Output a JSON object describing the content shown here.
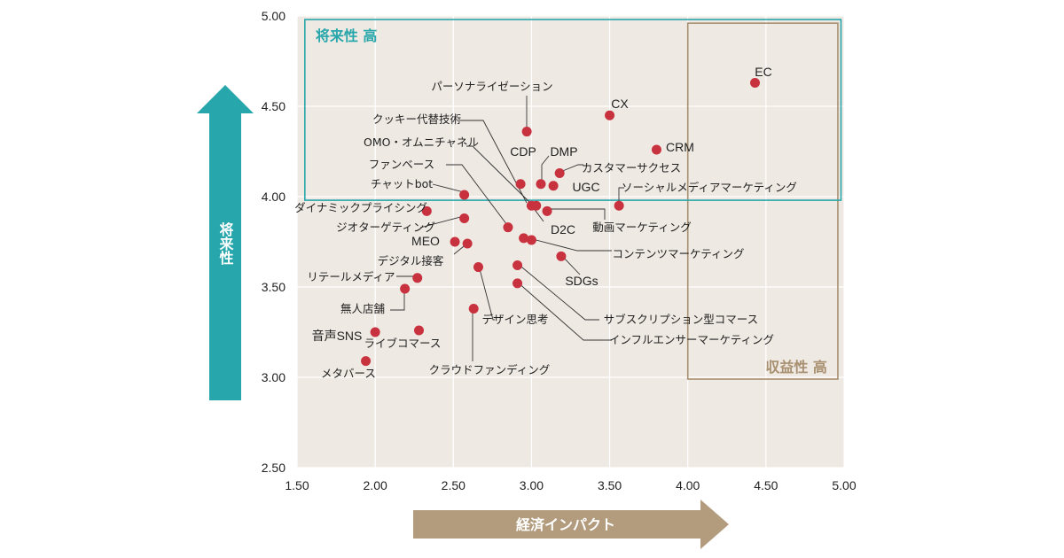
{
  "chart_data": {
    "type": "scatter",
    "x_axis": {
      "label": "経済インパクト",
      "range": [
        1.5,
        5.0
      ],
      "ticks": [
        "1.50",
        "2.00",
        "2.50",
        "3.00",
        "3.50",
        "4.00",
        "4.50",
        "5.00"
      ]
    },
    "y_axis": {
      "label": "将来性",
      "range": [
        2.5,
        5.0
      ],
      "ticks": [
        "2.50",
        "3.00",
        "3.50",
        "4.00",
        "4.50",
        "5.00"
      ]
    },
    "zones": [
      {
        "label": "将来性 高",
        "color": "#27a6ab",
        "x": [
          1.55,
          4.98
        ],
        "y": [
          3.98,
          4.98
        ]
      },
      {
        "label": "収益性 高",
        "color": "#a89070",
        "x": [
          4.0,
          4.96
        ],
        "y": [
          2.99,
          4.96
        ]
      }
    ],
    "colors": {
      "plot_bg": "#efe9e3",
      "point": "#c8313e",
      "teal": "#27a6ab",
      "tan": "#b39b7d"
    },
    "points": [
      {
        "name": "EC",
        "x": 4.43,
        "y": 4.63
      },
      {
        "name": "CX",
        "x": 3.5,
        "y": 4.45
      },
      {
        "name": "パーソナライゼーション",
        "x": 2.97,
        "y": 4.36
      },
      {
        "name": "CRM",
        "x": 3.8,
        "y": 4.26
      },
      {
        "name": "カスタマーサクセス",
        "x": 3.18,
        "y": 4.13
      },
      {
        "name": "CDP",
        "x": 2.93,
        "y": 4.07
      },
      {
        "name": "DMP",
        "x": 3.06,
        "y": 4.07
      },
      {
        "name": "UGC",
        "x": 3.14,
        "y": 4.06
      },
      {
        "name": "クッキー代替技術",
        "x": 3.0,
        "y": 3.95
      },
      {
        "name": "チャットbot",
        "x": 2.57,
        "y": 4.01
      },
      {
        "name": "ソーシャルメディアマーケティング",
        "x": 3.56,
        "y": 3.95
      },
      {
        "name": "D2C",
        "x": 3.03,
        "y": 3.95
      },
      {
        "name": "動画マーケティング",
        "x": 3.1,
        "y": 3.92
      },
      {
        "name": "ダイナミックプライシング",
        "x": 2.33,
        "y": 3.92
      },
      {
        "name": "ジオターゲティング",
        "x": 2.57,
        "y": 3.88
      },
      {
        "name": "ファンベース",
        "x": 2.85,
        "y": 3.83
      },
      {
        "name": "OMO・オムニチャネル",
        "x": 2.95,
        "y": 3.77
      },
      {
        "name": "MEO",
        "x": 2.51,
        "y": 3.75
      },
      {
        "name": "デジタル接客",
        "x": 2.59,
        "y": 3.74
      },
      {
        "name": "コンテンツマーケティング",
        "x": 3.0,
        "y": 3.76
      },
      {
        "name": "SDGs",
        "x": 3.19,
        "y": 3.67
      },
      {
        "name": "サブスクリプション型コマース",
        "x": 2.91,
        "y": 3.62
      },
      {
        "name": "リテールメディア",
        "x": 2.27,
        "y": 3.55
      },
      {
        "name": "デザイン思考",
        "x": 2.66,
        "y": 3.61
      },
      {
        "name": "インフルエンサーマーケティング",
        "x": 2.91,
        "y": 3.52
      },
      {
        "name": "無人店舗",
        "x": 2.19,
        "y": 3.49
      },
      {
        "name": "クラウドファンディング",
        "x": 2.63,
        "y": 3.38
      },
      {
        "name": "ライブコマース",
        "x": 2.28,
        "y": 3.26
      },
      {
        "name": "音声SNS",
        "x": 2.0,
        "y": 3.25
      },
      {
        "name": "メタバース",
        "x": 1.94,
        "y": 3.09
      }
    ]
  }
}
